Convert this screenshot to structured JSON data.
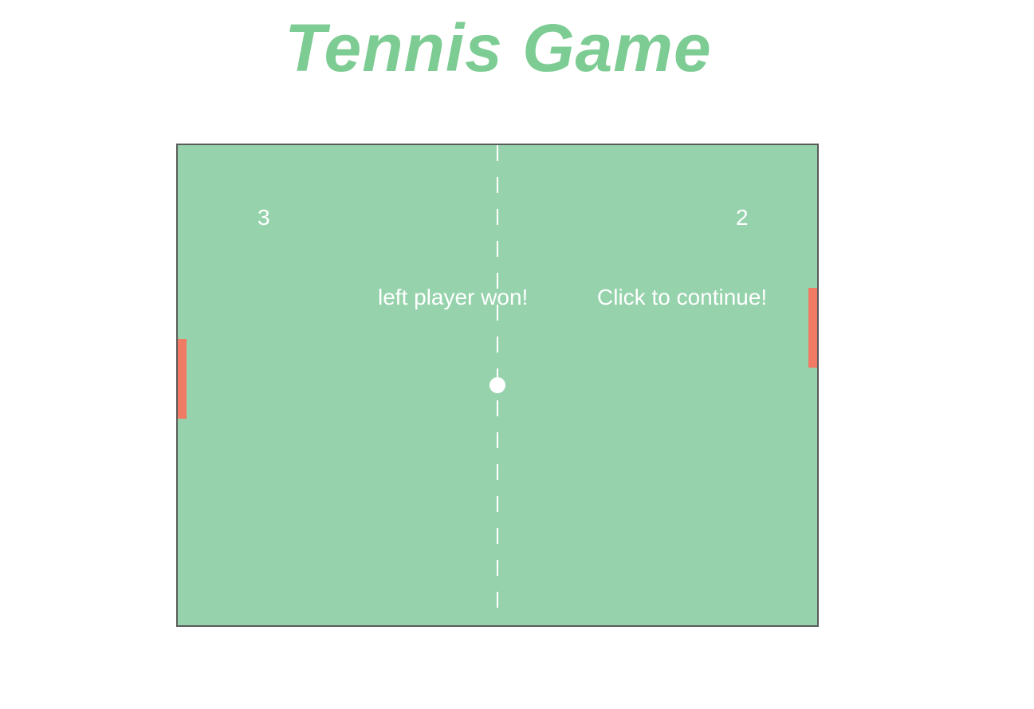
{
  "title": "Tennis Game",
  "score": {
    "left": "3",
    "right": "2"
  },
  "messages": {
    "winner": "left player won!",
    "continue": "Click to continue!"
  },
  "colors": {
    "title": "#7dcc93",
    "court": "#96d3ac",
    "court_border": "#5a5a5a",
    "paddle": "#f07a63",
    "ball": "#ffffff",
    "net": "#ffffff",
    "text": "#ffffff"
  }
}
